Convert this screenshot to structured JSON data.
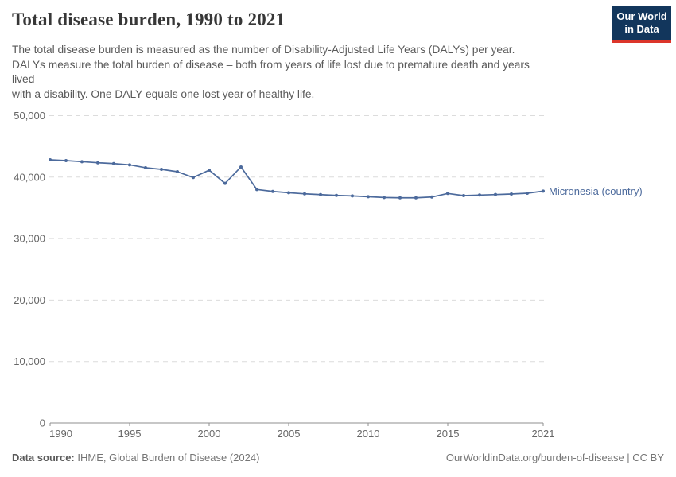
{
  "header": {
    "title": "Total disease burden, 1990 to 2021",
    "subtitle_lines": [
      "The total disease burden is measured as the number of Disability-Adjusted Life Years (DALYs) per year.",
      "DALYs measure the total burden of disease – both from years of life lost due to premature death and years",
      "lived",
      "with a disability. One DALY equals one lost year of healthy life."
    ],
    "logo": {
      "line1": "Our World",
      "line2": "in Data"
    }
  },
  "chart_data": {
    "type": "line",
    "title": "Total disease burden, 1990 to 2021",
    "x": [
      1990,
      1991,
      1992,
      1993,
      1994,
      1995,
      1996,
      1997,
      1998,
      1999,
      2000,
      2001,
      2002,
      2003,
      2004,
      2005,
      2006,
      2007,
      2008,
      2009,
      2010,
      2011,
      2012,
      2013,
      2014,
      2015,
      2016,
      2017,
      2018,
      2019,
      2020,
      2021
    ],
    "series": [
      {
        "name": "Micronesia (country)",
        "color": "#4c6a9c",
        "values": [
          42820,
          42690,
          42520,
          42340,
          42210,
          42000,
          41530,
          41270,
          40880,
          39940,
          41140,
          38980,
          41660,
          37990,
          37680,
          37470,
          37290,
          37160,
          37030,
          36950,
          36820,
          36690,
          36640,
          36640,
          36770,
          37350,
          37000,
          37090,
          37170,
          37260,
          37390,
          37730
        ]
      }
    ],
    "xlabel": "",
    "ylabel": "",
    "ylim": [
      0,
      50000
    ],
    "yticks": [
      0,
      10000,
      20000,
      30000,
      40000,
      50000
    ],
    "ytick_labels": [
      "0",
      "10,000",
      "20,000",
      "30,000",
      "40,000",
      "50,000"
    ],
    "xticks": [
      1990,
      1995,
      2000,
      2005,
      2010,
      2015,
      2021
    ],
    "grid": "horizontal-dashed",
    "legend_position": "end-of-line-label"
  },
  "footer": {
    "datasource_label": "Data source:",
    "datasource_value": "IHME, Global Burden of Disease (2024)",
    "credit": "OurWorldinData.org/burden-of-disease | CC BY"
  },
  "colors": {
    "accent_navy": "#12365c",
    "accent_red": "#dc352a",
    "line_blue": "#4c6a9c",
    "gridline": "#dcdcdc",
    "axis": "#8f8f8f"
  }
}
